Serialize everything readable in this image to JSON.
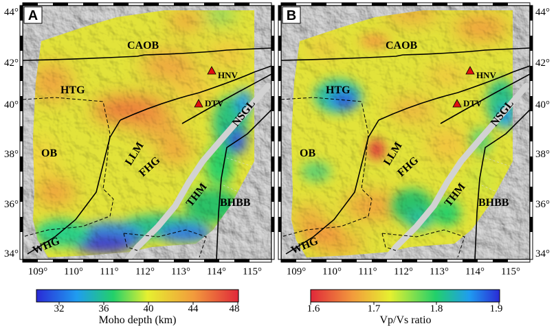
{
  "panels": [
    {
      "id": "A",
      "label": "A",
      "colorbar": {
        "title": "Moho depth (km)",
        "ticks": [
          "32",
          "36",
          "40",
          "44",
          "48"
        ],
        "range": [
          30,
          48
        ],
        "colors": [
          "#2a2ad6",
          "#1f9cf0",
          "#22d06a",
          "#e6f030",
          "#f29a3c",
          "#e0283a"
        ]
      }
    },
    {
      "id": "B",
      "label": "B",
      "colorbar": {
        "title": "Vp/Vs ratio",
        "ticks": [
          "1.6",
          "1.7",
          "1.8",
          "1.9"
        ],
        "range": [
          1.6,
          1.9
        ],
        "colors": [
          "#e0283a",
          "#f29a3c",
          "#e6f030",
          "#22d06a",
          "#1f9cf0",
          "#2a2ad6"
        ]
      }
    }
  ],
  "axes": {
    "lon_ticks": [
      "109°",
      "110°",
      "111°",
      "112°",
      "113°",
      "114°",
      "115°"
    ],
    "lat_ticks": [
      "44°",
      "42°",
      "40°",
      "38°",
      "36°",
      "34°"
    ]
  },
  "map_labels": {
    "CAOB": "CAOB",
    "HTG": "HTG",
    "OB": "OB",
    "LLM": "LLM",
    "FHG": "FHG",
    "THM": "THM",
    "NSGL": "NSGL",
    "BHBB": "BHBB",
    "WHG": "WHG"
  },
  "stations": [
    {
      "name": "HNV",
      "lon": 113.9,
      "lat": 41.3
    },
    {
      "name": "DTV",
      "lon": 113.6,
      "lat": 40.05
    }
  ],
  "colors": {
    "relief": "#9a9a9a",
    "triangle": "#e01010",
    "nsgl_band": "#d0d0d0"
  }
}
